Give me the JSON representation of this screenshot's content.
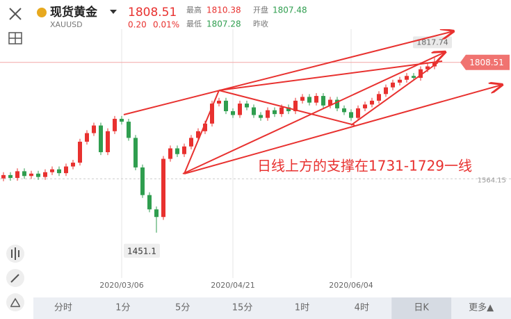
{
  "header": {
    "name": "现货黄金",
    "code": "XAUUSD",
    "price": "1808.51",
    "change": "0.20",
    "change_pct": "0.01%",
    "high_label": "最高",
    "high": "1810.38",
    "open_label": "开盘",
    "open": "1807.48",
    "low_label": "最低",
    "low": "1807.28",
    "prev_close_label": "昨收"
  },
  "tabs": [
    "分时",
    "1分",
    "5分",
    "15分",
    "1时",
    "4时",
    "日K",
    "更多▲"
  ],
  "chart_data": {
    "type": "candlestick",
    "annotation": "日线上方的支撑在1731-1729一线",
    "up_color": "#e8312f",
    "down_color": "#2f9e4f",
    "ylim": [
      1356,
      1881
    ],
    "high_marker": 1817.74,
    "low_marker": 1451.1,
    "last_price": 1808.51,
    "reference_price": 1564.15,
    "categories": [
      null,
      null,
      null,
      null,
      null,
      null,
      null,
      null,
      null,
      null,
      null,
      null,
      null,
      null,
      null,
      null,
      null,
      "2020/03/06",
      null,
      null,
      null,
      null,
      null,
      null,
      null,
      null,
      null,
      null,
      null,
      null,
      null,
      null,
      null,
      "2020/04/21",
      null,
      null,
      null,
      null,
      null,
      null,
      null,
      null,
      null,
      null,
      null,
      null,
      null,
      null,
      null,
      null,
      "2020/06/04",
      null,
      null,
      null,
      null,
      null,
      null,
      null,
      null,
      null,
      null,
      null,
      null
    ],
    "open": [
      1565,
      1572,
      1566,
      1580,
      1570,
      1575,
      1568,
      1578,
      1584,
      1576,
      1590,
      1598,
      1642,
      1660,
      1676,
      1620,
      1664,
      1690,
      1684,
      1650,
      1588,
      1530,
      1500,
      1484,
      1606,
      1628,
      1616,
      1632,
      1650,
      1664,
      1680,
      1722,
      1728,
      1706,
      1698,
      1722,
      1714,
      1698,
      1692,
      1708,
      1700,
      1714,
      1706,
      1728,
      1736,
      1724,
      1738,
      1718,
      1730,
      1712,
      1704,
      1692,
      1712,
      1720,
      1728,
      1742,
      1756,
      1766,
      1772,
      1780,
      1776,
      1794,
      1800
    ],
    "high": [
      1578,
      1578,
      1586,
      1586,
      1581,
      1581,
      1584,
      1590,
      1590,
      1596,
      1604,
      1648,
      1666,
      1682,
      1682,
      1670,
      1696,
      1696,
      1690,
      1656,
      1594,
      1536,
      1506,
      1612,
      1634,
      1634,
      1638,
      1656,
      1670,
      1686,
      1728,
      1734,
      1734,
      1712,
      1728,
      1728,
      1720,
      1704,
      1714,
      1714,
      1720,
      1720,
      1734,
      1742,
      1742,
      1744,
      1744,
      1736,
      1736,
      1718,
      1710,
      1718,
      1726,
      1734,
      1748,
      1762,
      1772,
      1778,
      1786,
      1786,
      1800,
      1806,
      1817.74
    ],
    "low": [
      1559,
      1560,
      1560,
      1564,
      1564,
      1562,
      1562,
      1572,
      1570,
      1570,
      1584,
      1592,
      1636,
      1654,
      1614,
      1614,
      1658,
      1678,
      1644,
      1582,
      1524,
      1494,
      1451.1,
      1478,
      1600,
      1610,
      1610,
      1626,
      1644,
      1658,
      1674,
      1716,
      1700,
      1692,
      1692,
      1708,
      1692,
      1686,
      1686,
      1694,
      1694,
      1700,
      1700,
      1722,
      1718,
      1718,
      1712,
      1712,
      1706,
      1698,
      1686,
      1686,
      1706,
      1714,
      1722,
      1736,
      1750,
      1760,
      1766,
      1770,
      1770,
      1788,
      1794
    ],
    "close": [
      1572,
      1566,
      1580,
      1570,
      1575,
      1568,
      1578,
      1584,
      1576,
      1590,
      1598,
      1642,
      1660,
      1676,
      1620,
      1664,
      1690,
      1684,
      1650,
      1588,
      1530,
      1500,
      1484,
      1606,
      1628,
      1616,
      1632,
      1650,
      1664,
      1680,
      1722,
      1728,
      1706,
      1698,
      1722,
      1714,
      1698,
      1692,
      1708,
      1700,
      1714,
      1706,
      1728,
      1736,
      1724,
      1738,
      1718,
      1730,
      1712,
      1704,
      1692,
      1712,
      1720,
      1728,
      1742,
      1756,
      1766,
      1772,
      1780,
      1776,
      1794,
      1800,
      1808.51
    ]
  }
}
